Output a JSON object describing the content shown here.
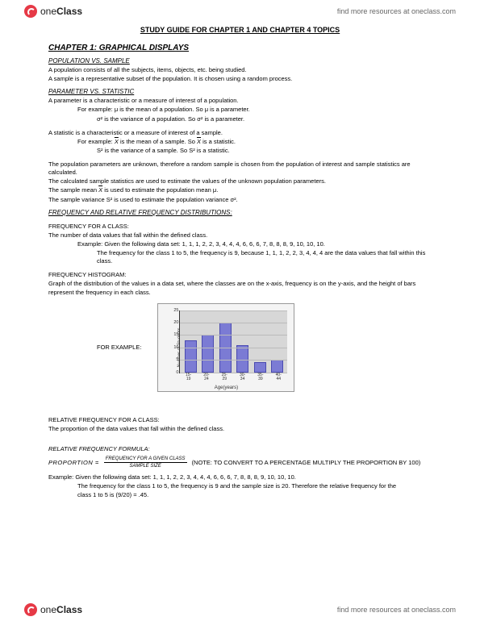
{
  "brand": {
    "one": "one",
    "class": "Class",
    "findmore": "find more resources at oneclass.com"
  },
  "doc": {
    "title": "STUDY GUIDE FOR CHAPTER 1 AND CHAPTER 4 TOPICS",
    "chapter1": "CHAPTER 1: GRAPHICAL DISPLAYS",
    "pop_vs_sample_head": "POPULATION VS. SAMPLE",
    "pop_line": "A population consists of all the subjects, items, objects, etc. being studied.",
    "sample_line": "A sample is a representative subset of the population. It is chosen using a random process.",
    "param_vs_stat_head": "PARAMETER VS. STATISTIC",
    "param_line": "A parameter is a characteristic or a measure of interest of a population.",
    "param_ex1_a": "For example: μ is the mean of a population. So μ is a parameter.",
    "param_ex1_b": "σ² is the variance of a population. So σ² is a parameter.",
    "stat_line": "A statistic is a characteristic or a measure of interest of a sample.",
    "stat_ex1_a_pre": "For example: ",
    "stat_ex1_a_post": " is the mean of a sample. So ",
    "stat_ex1_a_end": " is a statistic.",
    "stat_ex1_b": "S² is the variance of a sample. So S² is a statistic.",
    "unknown_line": "The population parameters are unknown, therefore a random sample is chosen from the population of interest and sample statistics are calculated.",
    "calc_line": "The calculated sample statistics are used to estimate the values of the unknown population parameters.",
    "mean_est_pre": "The sample mean ",
    "mean_est_post": " is used to estimate the population mean μ.",
    "var_est": "The sample variance S² is used to estimate the population variance σ².",
    "freq_dist_head": "FREQUENCY AND RELATIVE FREQUENCY DISTRIBUTIONS:",
    "freq_class_head": "FREQUENCY FOR A CLASS:",
    "freq_class_def": "The number of data values that fall within the defined class.",
    "freq_class_ex1": "Example: Given the following data set: 1, 1, 1, 2, 2, 3, 4, 4, 4, 6, 6, 6, 7, 8, 8, 8, 9, 10, 10, 10.",
    "freq_class_ex2": "The frequency for the class 1 to 5, the frequency is 9, because 1, 1, 1, 2, 2, 3, 4, 4, 4 are the data values that fall within this class.",
    "hist_head": "FREQUENCY HISTOGRAM:",
    "hist_def": "Graph of the distribution of the values in a data set, where the classes are on the x-axis, frequency is on the y-axis, and the height of bars represent the frequency in each class.",
    "for_example": "FOR EXAMPLE:",
    "relfreq_class_head": "RELATIVE FREQUENCY FOR A CLASS:",
    "relfreq_class_def": "The proportion of the data values that fall within the defined class.",
    "relfreq_formula_head": "RELATIVE FREQUENCY FORMULA:",
    "prop_label": "PROPORTION =",
    "prop_num": "FREQUENCY FOR A GIVEN CLASS",
    "prop_den": "SAMPLE SIZE",
    "prop_note": "(NOTE: TO CONVERT TO A PERCENTAGE MULTIPLY THE PROPORTION BY 100)",
    "relfreq_ex1": "Example: Given the following data set: 1, 1, 1, 2, 2, 3, 4, 4, 4, 6, 6, 6, 7, 8, 8, 8, 9, 10, 10, 10.",
    "relfreq_ex2": "The frequency for the class 1 to 5, the frequency is 9 and the sample size is 20. Therefore the relative frequency for the",
    "relfreq_ex3": "class 1 to 5 is (9/20) = .45."
  },
  "chart": {
    "type": "bar",
    "xlabel": "Age(years)",
    "ylabel": "Number of Students",
    "ymax": 25,
    "ytick_step": 5,
    "yticks": [
      0,
      5,
      10,
      15,
      20,
      25
    ],
    "categories": [
      "15-19",
      "20-24",
      "25-29",
      "30-34",
      "35-39",
      "40-44"
    ],
    "values": [
      13,
      15,
      20,
      11,
      4,
      5
    ],
    "bar_color": "#7b7bd4",
    "bar_border": "#4a4ab0",
    "plot_bg": "#d7d7d7",
    "panel_bg": "#f4f4f4",
    "grid_color": "#bbbbbb",
    "axis_color": "#333333",
    "label_fontsize": 6,
    "tick_fontsize": 5.5
  }
}
